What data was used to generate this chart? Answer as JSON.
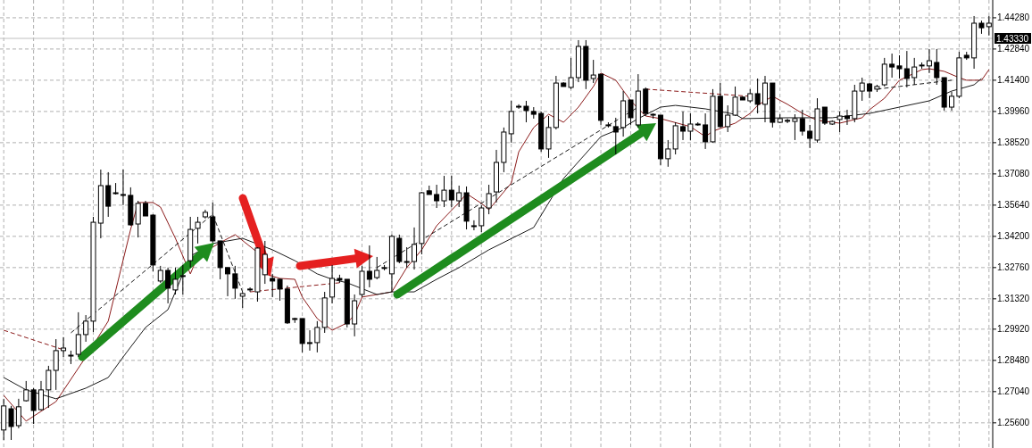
{
  "chart_data": {
    "type": "candlestick",
    "color": "#000000",
    "categories": [
      null,
      null,
      null,
      null,
      null,
      null,
      null,
      null,
      null,
      null,
      null,
      null,
      null,
      null,
      null,
      null,
      null,
      null,
      null,
      null,
      null,
      null,
      null,
      null,
      null,
      null,
      null,
      null,
      null,
      null,
      null,
      null,
      null,
      null,
      null,
      null,
      null,
      null,
      null,
      null,
      null,
      null,
      null,
      null,
      null,
      null,
      null,
      null,
      null,
      null,
      null,
      null,
      null,
      null,
      null,
      null,
      null,
      null,
      null,
      null,
      null,
      null,
      null,
      null,
      null,
      null,
      null,
      null,
      null,
      null,
      null,
      null,
      null,
      null,
      null,
      null,
      null,
      null,
      null,
      null,
      null,
      null,
      null,
      null,
      null,
      null,
      null,
      null,
      null,
      null,
      null,
      null,
      null,
      null,
      null,
      null,
      null,
      null,
      null,
      null,
      null,
      null,
      null,
      null,
      null,
      null,
      null,
      null,
      null,
      null,
      null,
      null,
      null,
      null,
      null,
      null,
      null,
      null,
      null,
      null,
      null,
      null,
      null,
      null,
      null,
      null,
      null,
      null,
      null,
      null,
      null,
      null,
      null
    ],
    "ohlc": [
      [
        1.2527,
        1.2671,
        1.2481,
        1.2638
      ],
      [
        1.2625,
        1.2638,
        1.2481,
        1.2543
      ],
      [
        1.2547,
        1.2671,
        1.2535,
        1.2634
      ],
      [
        1.2662,
        1.2753,
        1.2658,
        1.2712
      ],
      [
        1.2712,
        1.272,
        1.2555,
        1.2617
      ],
      [
        1.2621,
        1.2753,
        1.2617,
        1.2712
      ],
      [
        1.2712,
        1.2823,
        1.2629,
        1.2802
      ],
      [
        1.2802,
        1.2946,
        1.2712,
        1.2893
      ],
      [
        1.2893,
        1.2955,
        1.2864,
        1.2905
      ],
      [
        1.2868,
        1.2893,
        1.2831,
        1.2872
      ],
      [
        1.2876,
        1.307,
        1.2864,
        1.2967
      ],
      [
        1.2967,
        1.3057,
        1.2934,
        1.3029
      ],
      [
        1.3029,
        1.351,
        1.2979,
        1.3485
      ],
      [
        1.3481,
        1.3728,
        1.3411,
        1.3654
      ],
      [
        1.3654,
        1.3716,
        1.351,
        1.3559
      ],
      [
        1.3621,
        1.3666,
        1.3613,
        1.3617
      ],
      [
        1.3613,
        1.3728,
        1.3564,
        1.3613
      ],
      [
        1.3609,
        1.3646,
        1.3469,
        1.3473
      ],
      [
        1.3477,
        1.3584,
        1.3415,
        1.3572
      ],
      [
        1.3572,
        1.3584,
        1.3514,
        1.3514
      ],
      [
        1.3518,
        1.3522,
        1.3259,
        1.3288
      ],
      [
        1.3214,
        1.3284,
        1.3206,
        1.3263
      ],
      [
        1.3263,
        1.3276,
        1.3111,
        1.3181
      ],
      [
        1.3173,
        1.3276,
        1.3152,
        1.3222
      ],
      [
        1.3239,
        1.3288,
        1.3152,
        1.3239
      ],
      [
        1.3308,
        1.351,
        1.3276,
        1.3452
      ],
      [
        1.3457,
        1.351,
        1.3387,
        1.3485
      ],
      [
        1.351,
        1.3543,
        1.3502,
        1.3531
      ],
      [
        1.351,
        1.3576,
        1.3391,
        1.3399
      ],
      [
        1.3399,
        1.3399,
        1.3222,
        1.3276
      ],
      [
        1.3276,
        1.3276,
        1.3144,
        1.3247
      ],
      [
        1.3247,
        1.3284,
        1.3132,
        1.3181
      ],
      [
        1.3144,
        1.3164,
        1.309,
        1.3156
      ],
      [
        1.3177,
        1.3185,
        1.3164,
        1.3177
      ],
      [
        1.3164,
        1.337,
        1.3119,
        1.3366
      ],
      [
        1.3243,
        1.3399,
        1.3201,
        1.3337
      ],
      [
        1.3226,
        1.3247,
        1.314,
        1.3214
      ],
      [
        1.3222,
        1.3226,
        1.3123,
        1.3177
      ],
      [
        1.3177,
        1.3193,
        1.3016,
        1.3021
      ],
      [
        1.3041,
        1.3045,
        1.3021,
        1.3041
      ],
      [
        1.3041,
        1.3041,
        1.2885,
        1.2926
      ],
      [
        1.2926,
        1.2987,
        1.2893,
        1.293
      ],
      [
        1.293,
        1.3029,
        1.2885,
        1.3
      ],
      [
        1.3,
        1.3164,
        1.2975,
        1.3136
      ],
      [
        1.314,
        1.3288,
        1.3111,
        1.3226
      ],
      [
        1.3226,
        1.3243,
        1.3206,
        1.3218
      ],
      [
        1.3222,
        1.3222,
        1.3,
        1.3016
      ],
      [
        1.3016,
        1.3152,
        1.2959,
        1.3123
      ],
      [
        1.3152,
        1.3284,
        1.314,
        1.3259
      ],
      [
        1.3259,
        1.3378,
        1.3185,
        1.3222
      ],
      [
        1.323,
        1.3325,
        1.3222,
        1.3263
      ],
      [
        1.3276,
        1.3288,
        1.3263,
        1.3276
      ],
      [
        1.3247,
        1.3428,
        1.3164,
        1.342
      ],
      [
        1.3411,
        1.3428,
        1.3296,
        1.3304
      ],
      [
        1.3304,
        1.337,
        1.3276,
        1.3304
      ],
      [
        1.3304,
        1.3461,
        1.3267,
        1.3383
      ],
      [
        1.3387,
        1.3625,
        1.3337,
        1.3621
      ],
      [
        1.363,
        1.3654,
        1.3613,
        1.3613
      ],
      [
        1.3613,
        1.3658,
        1.3551,
        1.3584
      ],
      [
        1.3584,
        1.3699,
        1.3555,
        1.3633
      ],
      [
        1.3633,
        1.3699,
        1.3555,
        1.3588
      ],
      [
        1.3584,
        1.3654,
        1.3555,
        1.3621
      ],
      [
        1.3621,
        1.365,
        1.3452,
        1.349
      ],
      [
        1.3469,
        1.3494,
        1.3448,
        1.3469
      ],
      [
        1.3469,
        1.3564,
        1.344,
        1.3551
      ],
      [
        1.3551,
        1.3658,
        1.3522,
        1.3617
      ],
      [
        1.3625,
        1.3819,
        1.3576,
        1.3761
      ],
      [
        1.3761,
        1.3922,
        1.3716,
        1.3901
      ],
      [
        1.3893,
        1.4045,
        1.3852,
        1.3996
      ],
      [
        1.402,
        1.4029,
        1.4008,
        1.402
      ],
      [
        1.402,
        1.4045,
        1.3946,
        1.4
      ],
      [
        1.3996,
        1.4016,
        1.3963,
        1.3983
      ],
      [
        1.3987,
        1.3996,
        1.381,
        1.3823
      ],
      [
        1.3823,
        1.3975,
        1.3782,
        1.3922
      ],
      [
        1.3922,
        1.416,
        1.3913,
        1.4127
      ],
      [
        1.4127,
        1.4131,
        1.4111,
        1.4111
      ],
      [
        1.4107,
        1.4243,
        1.4099,
        1.4152
      ],
      [
        1.4152,
        1.4325,
        1.4131,
        1.4296
      ],
      [
        1.4296,
        1.4325,
        1.4099,
        1.414
      ],
      [
        1.4148,
        1.4234,
        1.4127,
        1.4164
      ],
      [
        1.4168,
        1.4168,
        1.3934,
        1.3955
      ],
      [
        1.3934,
        1.3946,
        1.3922,
        1.3934
      ],
      [
        1.3926,
        1.3967,
        1.3798,
        1.3901
      ],
      [
        1.3922,
        1.409,
        1.388,
        1.4045
      ],
      [
        1.4049,
        1.4049,
        1.3934,
        1.3967
      ],
      [
        1.3934,
        1.4168,
        1.3922,
        1.409
      ],
      [
        1.4099,
        1.4107,
        1.3975,
        1.3987
      ],
      [
        1.3983,
        1.3987,
        1.3963,
        1.3983
      ],
      [
        1.3979,
        1.3979,
        1.3749,
        1.3778
      ],
      [
        1.3778,
        1.3864,
        1.3741,
        1.3823
      ],
      [
        1.3823,
        1.3946,
        1.3798,
        1.393
      ],
      [
        1.3926,
        1.3996,
        1.3864,
        1.3905
      ],
      [
        1.3905,
        1.3987,
        1.3864,
        1.3938
      ],
      [
        1.3938,
        1.3946,
        1.393,
        1.3938
      ],
      [
        1.3934,
        1.3987,
        1.3823,
        1.3856
      ],
      [
        1.3856,
        1.4099,
        1.3852,
        1.4066
      ],
      [
        1.4066,
        1.4127,
        1.3922,
        1.3926
      ],
      [
        1.3926,
        1.4024,
        1.3901,
        1.3979
      ],
      [
        1.3979,
        1.4111,
        1.3975,
        1.4062
      ],
      [
        1.4062,
        1.4066,
        1.4049,
        1.4049
      ],
      [
        1.4045,
        1.4099,
        1.4037,
        1.4078
      ],
      [
        1.4078,
        1.4148,
        1.3987,
        1.4029
      ],
      [
        1.4029,
        1.416,
        1.3946,
        1.4127
      ],
      [
        1.4127,
        1.4127,
        1.3922,
        1.3946
      ],
      [
        1.3946,
        1.3983,
        1.3942,
        1.3963
      ],
      [
        1.3955,
        1.3963,
        1.3942,
        1.3955
      ],
      [
        1.395,
        1.3983,
        1.3864,
        1.3963
      ],
      [
        1.3963,
        1.4004,
        1.3885,
        1.3905
      ],
      [
        1.3905,
        1.3934,
        1.3827,
        1.3872
      ],
      [
        1.3864,
        1.4057,
        1.3852,
        1.4008
      ],
      [
        1.4016,
        1.4016,
        1.3934,
        1.3942
      ],
      [
        1.3938,
        1.3955,
        1.3934,
        1.395
      ],
      [
        1.3959,
        1.3996,
        1.3901,
        1.3975
      ],
      [
        1.3975,
        1.4004,
        1.3934,
        1.3963
      ],
      [
        1.3963,
        1.4119,
        1.3946,
        1.409
      ],
      [
        1.409,
        1.4152,
        1.4045,
        1.4127
      ],
      [
        1.4123,
        1.4127,
        1.4057,
        1.409
      ],
      [
        1.4099,
        1.4119,
        1.4086,
        1.4111
      ],
      [
        1.4119,
        1.4243,
        1.4111,
        1.4214
      ],
      [
        1.4214,
        1.4263,
        1.4152,
        1.4201
      ],
      [
        1.4206,
        1.4255,
        1.4148,
        1.4193
      ],
      [
        1.4193,
        1.4275,
        1.4107,
        1.4148
      ],
      [
        1.4152,
        1.4243,
        1.4119,
        1.4201
      ],
      [
        1.421,
        1.4222,
        1.4193,
        1.421
      ],
      [
        1.4206,
        1.4284,
        1.4173,
        1.423
      ],
      [
        1.4222,
        1.4284,
        1.4119,
        1.4152
      ],
      [
        1.4152,
        1.4152,
        1.4,
        1.4016
      ],
      [
        1.4016,
        1.4086,
        1.4,
        1.4066
      ],
      [
        1.4066,
        1.4271,
        1.4057,
        1.4243
      ],
      [
        1.4255,
        1.4271,
        1.4234,
        1.4243
      ],
      [
        1.4243,
        1.4436,
        1.4193,
        1.4403
      ],
      [
        1.4403,
        1.4415,
        1.4354,
        1.4382
      ],
      [
        1.4387,
        1.4436,
        1.4346,
        1.4403
      ]
    ],
    "series": [
      {
        "type": "line",
        "color": "#8b1a1a",
        "values": [
          1.2687,
          null,
          null,
          1.2568,
          null,
          null,
          null,
          1.2658,
          null,
          null,
          null,
          1.2864,
          null,
          null,
          1.3029,
          null,
          null,
          1.3452,
          1.3576,
          null,
          1.3576,
          1.3555,
          null,
          1.3411,
          null,
          1.3247,
          1.3329,
          null,
          null,
          1.3391,
          null,
          1.3428,
          null,
          null,
          1.3346,
          1.3247,
          null,
          1.3226,
          null,
          1.3222,
          1.314,
          null,
          1.3041,
          null,
          1.2987,
          null,
          1.3021,
          1.3057,
          1.314,
          null,
          null,
          null,
          1.3164,
          null,
          1.3276,
          null,
          1.3358,
          null,
          1.3469,
          null,
          null,
          1.3576,
          1.3617,
          null,
          1.3572,
          1.3543,
          null,
          null,
          1.3666,
          1.381,
          null,
          1.3922,
          null,
          1.3983,
          null,
          1.3946,
          null,
          1.4016,
          null,
          1.4111,
          1.4173,
          null,
          1.414,
          null,
          1.4045,
          null,
          1.3975,
          null,
          1.3963,
          null,
          null,
          null,
          1.3926,
          null,
          1.388,
          1.3905,
          null,
          null,
          1.3942,
          null,
          1.3987,
          1.4024,
          null,
          1.4066,
          null,
          1.4029,
          null,
          1.3987,
          null,
          1.3955,
          null,
          null,
          1.3942,
          null,
          null,
          1.3967,
          1.4004,
          null,
          1.4057,
          null,
          1.414,
          null,
          null,
          1.4189,
          1.4193,
          null,
          1.4181,
          null,
          1.4152,
          1.414,
          null,
          1.414,
          1.4189
        ]
      },
      {
        "type": "line",
        "color": "#1a1a1a",
        "values": [
          1.2769,
          null,
          null,
          1.2712,
          null,
          null,
          null,
          1.2671,
          null,
          null,
          null,
          1.272,
          null,
          null,
          1.2769,
          null,
          1.2864,
          null,
          null,
          1.3,
          null,
          null,
          1.3082,
          null,
          null,
          1.3329,
          null,
          null,
          1.3387,
          null,
          null,
          null,
          1.3411,
          null,
          null,
          null,
          1.3358,
          null,
          null,
          1.3308,
          null,
          null,
          1.3247,
          null,
          1.3222,
          null,
          1.3206,
          null,
          null,
          null,
          1.3152,
          null,
          1.3164,
          null,
          null,
          1.3164,
          null,
          null,
          1.3222,
          null,
          null,
          1.3276,
          null,
          null,
          null,
          1.3358,
          null,
          null,
          null,
          null,
          null,
          1.3461,
          null,
          null,
          null,
          1.3687,
          null,
          null,
          null,
          null,
          1.388,
          null,
          null,
          1.3922,
          null,
          1.3963,
          null,
          null,
          1.4016,
          null,
          1.4024,
          null,
          null,
          null,
          1.4008,
          null,
          null,
          null,
          1.3983,
          1.3963,
          null,
          null,
          null,
          null,
          null,
          1.3967,
          null,
          null,
          null,
          null,
          null,
          1.3967,
          null,
          null,
          null,
          null,
          1.3987,
          null,
          null,
          null,
          1.4016,
          null,
          null,
          null,
          1.4045,
          null,
          null,
          1.409,
          null,
          null,
          1.4119,
          1.4148,
          null
        ]
      },
      {
        "type": "line",
        "color": "#8b1a1a",
        "line_style": "dashed",
        "values": [
          1.2987,
          null,
          null,
          null,
          null,
          null,
          null,
          null,
          1.2897,
          null,
          null,
          null,
          null,
          null,
          null,
          null,
          null,
          null,
          null,
          null,
          null,
          null,
          null,
          null,
          null,
          null,
          null,
          null,
          null,
          null,
          null,
          null,
          null,
          null,
          null,
          null,
          null,
          null,
          null,
          null,
          null,
          null,
          null,
          null,
          null,
          null,
          null,
          null,
          null,
          null,
          null,
          null,
          null,
          null,
          null,
          null,
          null,
          null,
          null,
          null,
          null,
          null,
          null,
          null,
          null,
          null,
          null,
          null,
          null,
          null,
          null,
          null,
          null,
          null,
          null,
          null,
          null,
          null,
          null,
          null,
          null,
          null,
          null,
          null,
          null,
          null,
          null,
          null,
          null,
          null,
          null,
          null,
          null,
          null,
          null,
          null,
          null,
          null,
          null,
          null,
          null,
          null,
          null,
          null,
          null,
          null,
          null,
          null,
          null,
          null,
          null,
          null,
          null,
          null,
          null,
          null,
          null,
          null,
          null,
          null,
          null,
          null,
          null,
          null,
          null,
          null,
          null,
          null,
          null,
          null,
          null,
          null,
          null
        ]
      },
      {
        "type": "line",
        "color": "#8b1a1a",
        "line_style": "dashed",
        "values": [
          null,
          null,
          null,
          null,
          null,
          null,
          null,
          null,
          null,
          null,
          null,
          null,
          null,
          null,
          null,
          null,
          null,
          null,
          null,
          null,
          null,
          null,
          null,
          null,
          null,
          null,
          null,
          null,
          null,
          null,
          null,
          null,
          null,
          1.3164,
          null,
          null,
          null,
          null,
          null,
          null,
          null,
          null,
          null,
          null,
          null,
          1.3206,
          null,
          null,
          null,
          null,
          null,
          null,
          null,
          null,
          null,
          null,
          null,
          null,
          null,
          null,
          null,
          null,
          null,
          null,
          null,
          null,
          null,
          null,
          null,
          null,
          null,
          null,
          null,
          null,
          null,
          null,
          null,
          null,
          null,
          null,
          null,
          null,
          null,
          null,
          null,
          null,
          null,
          null,
          null,
          null,
          null,
          null,
          null,
          null,
          null,
          null,
          null,
          null,
          null,
          null,
          null,
          null,
          null,
          null,
          null,
          null,
          null,
          null,
          null,
          null,
          null,
          null,
          null,
          null,
          null,
          null,
          null,
          null,
          null,
          null,
          null,
          null,
          null,
          null,
          null,
          null,
          null,
          null,
          null,
          null,
          null,
          null,
          null
        ]
      },
      {
        "type": "line",
        "color": "#8b1a1a",
        "line_style": "dashed",
        "values": [
          null,
          null,
          null,
          null,
          null,
          null,
          null,
          null,
          null,
          null,
          null,
          null,
          null,
          null,
          null,
          null,
          null,
          null,
          null,
          null,
          null,
          null,
          null,
          null,
          null,
          null,
          null,
          null,
          null,
          null,
          null,
          null,
          null,
          null,
          null,
          null,
          null,
          null,
          null,
          null,
          null,
          null,
          null,
          null,
          null,
          null,
          null,
          null,
          null,
          null,
          null,
          null,
          null,
          null,
          null,
          null,
          null,
          null,
          null,
          null,
          null,
          null,
          null,
          null,
          null,
          null,
          null,
          null,
          null,
          null,
          null,
          null,
          null,
          null,
          null,
          null,
          null,
          null,
          null,
          null,
          null,
          null,
          null,
          null,
          null,
          null,
          1.4099,
          null,
          null,
          null,
          null,
          null,
          null,
          null,
          null,
          null,
          null,
          null,
          null,
          null,
          1.4066,
          null,
          null,
          null,
          null,
          null,
          null,
          null,
          null,
          null,
          null,
          null,
          null,
          null,
          null,
          null,
          null,
          null,
          null,
          null,
          null,
          null,
          null,
          null,
          null,
          null,
          null,
          null,
          null,
          null,
          null,
          null,
          null
        ]
      },
      {
        "type": "line",
        "color": "#1a1a1a",
        "line_style": "dashed",
        "values": [
          null,
          null,
          null,
          null,
          null,
          null,
          null,
          null,
          null,
          1.2975,
          null,
          null,
          null,
          null,
          null,
          null,
          null,
          null,
          null,
          null,
          null,
          null,
          null,
          null,
          null,
          null,
          null,
          null,
          1.3522,
          null,
          null,
          null,
          1.3164,
          null,
          null,
          null,
          null,
          null,
          null,
          null,
          null,
          null,
          null,
          null,
          null,
          null,
          null,
          null,
          null,
          null,
          null,
          null,
          null,
          null,
          null,
          null,
          null,
          null,
          null,
          null,
          null,
          null,
          null,
          null,
          null,
          null,
          null,
          null,
          null,
          null,
          null,
          null,
          null,
          null,
          null,
          null,
          null,
          null,
          null,
          null,
          null,
          null,
          null,
          null,
          null,
          null,
          null,
          null,
          null,
          null,
          null,
          null,
          null,
          null,
          null,
          null,
          null,
          null,
          null,
          null,
          null,
          null,
          null,
          null,
          null,
          null,
          null,
          null,
          null,
          null,
          null,
          null,
          null,
          null,
          null,
          null,
          null,
          null,
          null,
          null,
          null,
          null,
          null,
          null,
          null,
          null,
          null,
          null,
          null,
          null,
          null,
          null,
          null
        ]
      },
      {
        "type": "line",
        "color": "#1a1a1a",
        "line_style": "dashed",
        "values": [
          null,
          null,
          null,
          null,
          null,
          null,
          null,
          null,
          null,
          null,
          null,
          null,
          null,
          null,
          null,
          null,
          null,
          null,
          null,
          null,
          null,
          null,
          null,
          null,
          null,
          null,
          null,
          null,
          null,
          null,
          null,
          null,
          null,
          null,
          null,
          null,
          null,
          null,
          null,
          null,
          null,
          null,
          null,
          null,
          null,
          null,
          null,
          null,
          null,
          null,
          1.3276,
          null,
          null,
          null,
          null,
          null,
          null,
          null,
          null,
          null,
          null,
          null,
          null,
          null,
          null,
          null,
          null,
          null,
          1.3658,
          null,
          null,
          null,
          null,
          null,
          null,
          null,
          null,
          null,
          null,
          null,
          null,
          null,
          null,
          null,
          null,
          1.4016,
          null,
          null,
          null,
          null,
          null,
          null,
          null,
          null,
          null,
          null,
          null,
          null,
          null,
          null,
          null,
          null,
          null,
          null,
          null,
          null,
          null,
          null,
          null,
          null,
          null,
          null,
          null,
          null,
          null,
          null,
          null,
          null,
          null,
          null,
          null,
          null,
          null,
          null,
          null,
          null,
          null,
          null,
          null,
          null,
          null,
          null,
          null
        ]
      },
      {
        "type": "line",
        "color": "#1a1a1a",
        "line_style": "dashed",
        "values": [
          null,
          null,
          null,
          null,
          null,
          null,
          null,
          null,
          null,
          null,
          null,
          null,
          null,
          null,
          null,
          null,
          null,
          null,
          null,
          null,
          null,
          null,
          null,
          null,
          null,
          null,
          null,
          null,
          null,
          null,
          null,
          null,
          null,
          null,
          null,
          null,
          null,
          null,
          null,
          null,
          null,
          null,
          null,
          null,
          null,
          null,
          null,
          null,
          null,
          null,
          null,
          null,
          null,
          null,
          null,
          null,
          null,
          null,
          null,
          null,
          null,
          null,
          null,
          null,
          null,
          null,
          null,
          null,
          null,
          null,
          null,
          null,
          null,
          null,
          null,
          null,
          null,
          null,
          null,
          null,
          null,
          null,
          null,
          null,
          null,
          null,
          null,
          null,
          null,
          null,
          null,
          null,
          null,
          null,
          null,
          null,
          null,
          null,
          null,
          null,
          null,
          null,
          null,
          null,
          null,
          null,
          null,
          null,
          null,
          null,
          null,
          null,
          null,
          null,
          null,
          null,
          null,
          1.4099,
          null,
          null,
          null,
          null,
          null,
          null,
          null,
          null,
          null,
          1.414,
          null,
          null,
          null,
          null,
          null
        ]
      }
    ],
    "ylim": [
      1.2444,
      1.451
    ],
    "yticks": [
      {
        "value": 1.4428,
        "label": "1.44280"
      },
      {
        "value": 1.4284,
        "label": "1.42840"
      },
      {
        "value": 1.414,
        "label": "1.41400"
      },
      {
        "value": 1.3996,
        "label": "1.39960"
      },
      {
        "value": 1.3852,
        "label": "1.38520"
      },
      {
        "value": 1.3708,
        "label": "1.37080"
      },
      {
        "value": 1.3564,
        "label": "1.35640"
      },
      {
        "value": 1.342,
        "label": "1.34200"
      },
      {
        "value": 1.3276,
        "label": "1.32760"
      },
      {
        "value": 1.3132,
        "label": "1.31320"
      },
      {
        "value": 1.2992,
        "label": "1.29920"
      },
      {
        "value": 1.2848,
        "label": "1.28480"
      },
      {
        "value": 1.2704,
        "label": "1.27040"
      },
      {
        "value": 1.256,
        "label": "1.25600"
      }
    ],
    "ref_lines": [
      {
        "axis": "y",
        "value": 1.4333,
        "label": "1.43330",
        "color": "#c0c0c0"
      }
    ],
    "grid": true,
    "tick_labels": "y"
  }
}
